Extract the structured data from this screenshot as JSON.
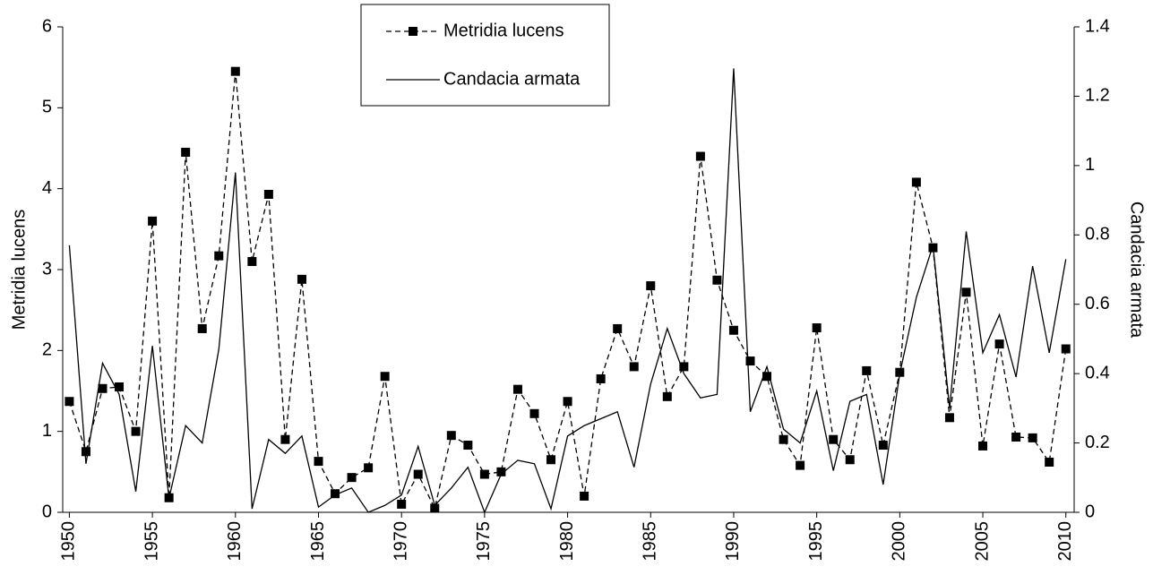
{
  "chart_data": {
    "type": "line",
    "x": [
      1950,
      1951,
      1952,
      1953,
      1954,
      1955,
      1956,
      1957,
      1958,
      1959,
      1960,
      1961,
      1962,
      1963,
      1964,
      1965,
      1966,
      1967,
      1968,
      1969,
      1970,
      1971,
      1972,
      1973,
      1974,
      1975,
      1976,
      1977,
      1978,
      1979,
      1980,
      1981,
      1982,
      1983,
      1984,
      1985,
      1986,
      1987,
      1988,
      1989,
      1990,
      1991,
      1992,
      1993,
      1994,
      1995,
      1996,
      1997,
      1998,
      1999,
      2000,
      2001,
      2002,
      2003,
      2004,
      2005,
      2006,
      2007,
      2008,
      2009,
      2010
    ],
    "series": [
      {
        "name": "Metridia lucens",
        "color": "#000000",
        "dash": "6,4",
        "marker": "square",
        "axis": "y",
        "values": [
          1.37,
          0.75,
          1.53,
          1.55,
          1.0,
          3.6,
          0.18,
          4.45,
          2.27,
          3.17,
          5.45,
          3.1,
          3.93,
          0.9,
          2.88,
          0.63,
          0.23,
          0.43,
          0.55,
          1.68,
          0.1,
          0.47,
          0.05,
          0.95,
          0.83,
          0.47,
          0.5,
          1.52,
          1.22,
          0.65,
          1.37,
          0.2,
          1.65,
          2.27,
          1.8,
          2.8,
          1.43,
          1.8,
          4.4,
          2.87,
          2.25,
          1.87,
          1.68,
          0.9,
          0.58,
          2.28,
          0.9,
          0.65,
          1.75,
          0.83,
          1.73,
          4.08,
          3.27,
          1.17,
          2.72,
          0.82,
          2.08,
          0.93,
          0.92,
          0.62,
          2.02
        ]
      },
      {
        "name": "Candacia armata",
        "color": "#000000",
        "dash": "none",
        "marker": "none",
        "axis": "y2",
        "values": [
          0.77,
          0.14,
          0.43,
          0.34,
          0.06,
          0.48,
          0.04,
          0.25,
          0.2,
          0.47,
          0.98,
          0.01,
          0.21,
          0.17,
          0.22,
          0.015,
          0.05,
          0.07,
          0.0,
          0.02,
          0.05,
          0.19,
          0.02,
          0.07,
          0.13,
          0.0,
          0.11,
          0.15,
          0.14,
          0.01,
          0.22,
          0.25,
          0.27,
          0.29,
          0.13,
          0.37,
          0.53,
          0.4,
          0.33,
          0.34,
          1.28,
          0.29,
          0.42,
          0.24,
          0.2,
          0.35,
          0.12,
          0.32,
          0.34,
          0.08,
          0.4,
          0.62,
          0.77,
          0.3,
          0.81,
          0.46,
          0.57,
          0.39,
          0.71,
          0.46,
          0.73
        ]
      }
    ],
    "y_label": "Metridia lucens",
    "y2_label": "Candacia armata",
    "xlim": [
      1949.6,
      2010.5
    ],
    "xticks": [
      1950,
      1955,
      1960,
      1965,
      1970,
      1975,
      1980,
      1985,
      1990,
      1995,
      2000,
      2005,
      2010
    ],
    "ylim": [
      0,
      6
    ],
    "yticks": [
      0,
      1,
      2,
      3,
      4,
      5,
      6
    ],
    "y2lim": [
      0,
      1.4
    ],
    "y2ticks": [
      0,
      0.2,
      0.4,
      0.6,
      0.8,
      1,
      1.2,
      1.4
    ],
    "legend": "top-center",
    "grid": false
  }
}
